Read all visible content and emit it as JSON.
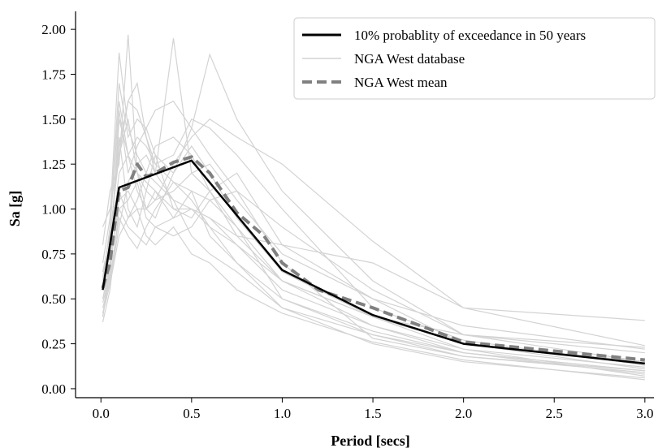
{
  "chart_data": {
    "type": "line",
    "xlabel": "Period [secs]",
    "ylabel": "Sa [g]",
    "xlim": [
      -0.14,
      3.05
    ],
    "ylim": [
      -0.05,
      2.1
    ],
    "x_ticks": [
      0.0,
      0.5,
      1.0,
      1.5,
      2.0,
      2.5,
      3.0
    ],
    "x_tick_labels": [
      "0.0",
      "0.5",
      "1.0",
      "1.5",
      "2.0",
      "2.5",
      "3.0"
    ],
    "y_ticks": [
      0.0,
      0.25,
      0.5,
      0.75,
      1.0,
      1.25,
      1.5,
      1.75,
      2.0
    ],
    "y_tick_labels": [
      "0.00",
      "0.25",
      "0.50",
      "0.75",
      "1.00",
      "1.25",
      "1.50",
      "1.75",
      "2.00"
    ],
    "grid": false,
    "legend": {
      "placement": "top-right",
      "entries": [
        "10% probablity of exceedance in 50 years",
        "NGA West database",
        "NGA West mean"
      ]
    },
    "colors": {
      "target": "#000000",
      "database": "#d3d3d3",
      "mean": "#808080"
    },
    "x": [
      0.01,
      0.05,
      0.1,
      0.15,
      0.2,
      0.25,
      0.3,
      0.4,
      0.5,
      0.6,
      0.75,
      1.0,
      1.5,
      2.0,
      3.0
    ],
    "series": [
      {
        "name": "10% probablity of exceedance in 50 years",
        "style": "solid",
        "x": [
          0.01,
          0.1,
          0.5,
          1.0,
          1.5,
          2.0,
          3.0
        ],
        "values": [
          0.55,
          1.12,
          1.27,
          0.66,
          0.41,
          0.25,
          0.14
        ]
      },
      {
        "name": "NGA West mean",
        "style": "dashed",
        "x": [
          0.01,
          0.05,
          0.1,
          0.15,
          0.2,
          0.25,
          0.3,
          0.4,
          0.5,
          0.6,
          0.75,
          0.9,
          1.0,
          1.2,
          1.5,
          2.0,
          3.0
        ],
        "values": [
          0.56,
          0.7,
          1.1,
          1.12,
          1.25,
          1.18,
          1.2,
          1.26,
          1.29,
          1.2,
          0.98,
          0.85,
          0.7,
          0.55,
          0.45,
          0.26,
          0.16
        ]
      }
    ],
    "database": [
      [
        0.4,
        0.65,
        1.5,
        1.3,
        1.2,
        1.0,
        1.1,
        0.95,
        1.1,
        0.85,
        0.7,
        0.45,
        0.3,
        0.2,
        0.1
      ],
      [
        0.6,
        0.9,
        1.7,
        1.4,
        1.5,
        1.45,
        1.3,
        1.2,
        1.35,
        1.2,
        0.95,
        0.65,
        0.4,
        0.25,
        0.15
      ],
      [
        0.8,
        1.1,
        1.25,
        1.97,
        1.2,
        1.15,
        1.1,
        1.0,
        1.0,
        0.9,
        0.8,
        0.55,
        0.35,
        0.22,
        0.12
      ],
      [
        0.37,
        0.55,
        1.0,
        0.9,
        0.85,
        0.8,
        0.9,
        0.95,
        1.0,
        0.95,
        0.85,
        0.8,
        0.5,
        0.35,
        0.22
      ],
      [
        0.9,
        1.0,
        1.3,
        1.6,
        1.7,
        1.4,
        1.2,
        1.95,
        1.2,
        1.1,
        0.9,
        0.5,
        0.3,
        0.18,
        0.09
      ],
      [
        0.5,
        0.7,
        1.05,
        1.1,
        1.0,
        1.0,
        0.95,
        1.2,
        1.45,
        1.86,
        1.5,
        1.1,
        0.6,
        0.3,
        0.15
      ],
      [
        0.55,
        0.8,
        1.4,
        1.0,
        0.9,
        1.1,
        1.3,
        1.0,
        0.95,
        1.1,
        1.2,
        0.8,
        0.7,
        0.45,
        0.38
      ],
      [
        0.45,
        0.6,
        0.9,
        1.15,
        1.25,
        1.3,
        1.2,
        1.05,
        1.0,
        0.95,
        0.8,
        0.6,
        0.35,
        0.2,
        0.08
      ],
      [
        0.6,
        0.75,
        1.2,
        1.3,
        1.4,
        1.35,
        1.25,
        1.3,
        1.5,
        1.45,
        1.3,
        1.0,
        0.45,
        0.27,
        0.13
      ],
      [
        0.7,
        0.95,
        1.87,
        1.45,
        1.3,
        1.2,
        1.15,
        1.05,
        0.85,
        0.75,
        0.65,
        0.45,
        0.25,
        0.15,
        0.06
      ],
      [
        0.5,
        0.65,
        1.1,
        0.95,
        1.05,
        1.2,
        1.35,
        1.4,
        1.3,
        1.1,
        0.85,
        0.6,
        0.4,
        0.3,
        0.23
      ],
      [
        0.65,
        0.85,
        1.3,
        1.5,
        1.2,
        1.1,
        1.05,
        1.1,
        1.2,
        1.25,
        1.05,
        0.75,
        0.5,
        0.25,
        0.11
      ],
      [
        0.4,
        0.7,
        1.55,
        1.2,
        1.35,
        1.45,
        1.55,
        1.6,
        1.45,
        1.3,
        1.1,
        0.7,
        0.28,
        0.18,
        0.1
      ],
      [
        0.55,
        0.75,
        1.0,
        1.05,
        1.15,
        0.95,
        0.9,
        0.85,
        0.9,
        1.05,
        1.1,
        0.9,
        0.55,
        0.3,
        0.2
      ],
      [
        0.48,
        0.62,
        0.95,
        0.85,
        0.78,
        0.9,
        1.0,
        1.15,
        1.05,
        0.9,
        0.7,
        0.5,
        0.32,
        0.2,
        0.1
      ],
      [
        0.58,
        0.82,
        1.35,
        1.6,
        1.55,
        1.4,
        1.25,
        1.15,
        1.1,
        1.05,
        0.9,
        0.6,
        0.4,
        0.22,
        0.07
      ],
      [
        0.62,
        0.88,
        1.6,
        1.3,
        1.1,
        1.0,
        1.05,
        1.25,
        1.4,
        1.5,
        1.4,
        1.25,
        0.82,
        0.45,
        0.24
      ],
      [
        0.42,
        0.58,
        0.85,
        0.95,
        1.0,
        0.85,
        0.8,
        0.9,
        0.75,
        0.7,
        0.55,
        0.42,
        0.26,
        0.16,
        0.05
      ]
    ]
  }
}
